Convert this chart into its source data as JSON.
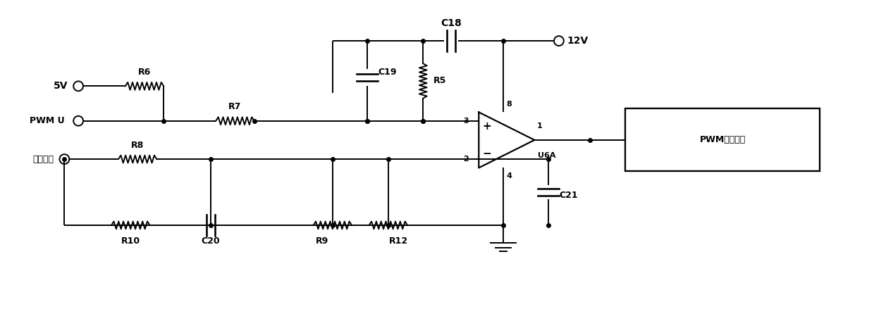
{
  "bg_color": "#ffffff",
  "line_color": "#000000",
  "fig_width": 12.4,
  "fig_height": 4.66,
  "dpi": 100,
  "labels": {
    "output_voltage": "输出电压",
    "5v": "5V",
    "pwm_u": "PWM U",
    "r6": "R6",
    "r7": "R7",
    "r8": "R8",
    "r9": "R9",
    "r10": "R10",
    "r12": "R12",
    "r5": "R5",
    "c18": "C18",
    "c19": "C19",
    "c20": "C20",
    "c21": "C21",
    "pin8": "8",
    "pin3": "3",
    "pin2": "2",
    "pin4": "4",
    "pin1": "1",
    "u6a": "U6A",
    "12v": "12V",
    "pwm_chip": "PWM控制芯片"
  }
}
